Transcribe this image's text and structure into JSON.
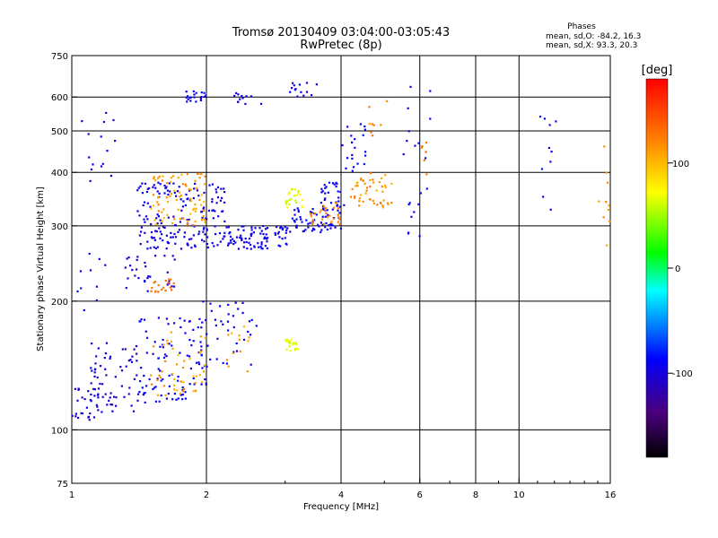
{
  "chart_data": {
    "type": "scatter",
    "title": "Tromsø 20130409 03:04:00-03:05:43",
    "subtitle": "RwPretec (8p)",
    "xlabel": "Frequency [MHz]",
    "ylabel": "Stationary phase Virtual Height [km]",
    "x_scale": "log",
    "y_scale": "log",
    "xlim": [
      1,
      16
    ],
    "ylim": [
      75,
      750
    ],
    "x_ticks": [
      1,
      2,
      4,
      6,
      8,
      10,
      16
    ],
    "y_ticks": [
      75,
      100,
      200,
      300,
      400,
      500,
      600,
      750
    ],
    "x_gridlines": [
      2,
      4,
      6,
      8,
      10
    ],
    "y_gridlines": [
      100,
      200,
      300,
      400,
      500,
      600
    ],
    "grid": true,
    "phases_box": {
      "title": "Phases",
      "line_o": "mean, sd,O: -84.2, 16.3",
      "line_x": "mean, sd,X:  93.3, 20.3"
    },
    "colorbar": {
      "label": "[deg]",
      "range": [
        -180,
        180
      ],
      "ticks": [
        -100,
        0,
        100
      ],
      "colormap": [
        "#000000",
        "#4b007f",
        "#0000ff",
        "#00ffff",
        "#00ff00",
        "#ffff00",
        "#ff8000",
        "#ff0000"
      ]
    },
    "series": [
      {
        "clusters": [
          {
            "f": [
              1.0,
              1.15
            ],
            "h": [
              105,
              125
            ],
            "n": 30,
            "ph": [
              -110,
              -95
            ]
          },
          {
            "f": [
              1.1,
              1.4
            ],
            "h": [
              110,
              160
            ],
            "n": 60,
            "ph": [
              -115,
              -90
            ]
          },
          {
            "f": [
              1.4,
              2.0
            ],
            "h": [
              115,
              185
            ],
            "n": 100,
            "ph": [
              -105,
              -80
            ]
          },
          {
            "f": [
              1.5,
              2.0
            ],
            "h": [
              120,
              170
            ],
            "n": 45,
            "ph": [
              95,
              125
            ]
          },
          {
            "f": [
              1.9,
              2.6
            ],
            "h": [
              140,
              200
            ],
            "n": 40,
            "ph": [
              -105,
              -85
            ]
          },
          {
            "f": [
              2.2,
              2.5
            ],
            "h": [
              135,
              175
            ],
            "n": 12,
            "ph": [
              100,
              125
            ]
          },
          {
            "f": [
              3.0,
              3.2
            ],
            "h": [
              153,
              163
            ],
            "n": 25,
            "ph": [
              55,
              75
            ]
          },
          {
            "f": [
              1.3,
              1.7
            ],
            "h": [
              210,
              260
            ],
            "n": 30,
            "ph": [
              -110,
              -90
            ]
          },
          {
            "f": [
              1.5,
              1.7
            ],
            "h": [
              210,
              225
            ],
            "n": 18,
            "ph": [
              120,
              135
            ]
          },
          {
            "f": [
              1.4,
              2.2
            ],
            "h": [
              265,
              380
            ],
            "n": 180,
            "ph": [
              -110,
              -85
            ]
          },
          {
            "f": [
              1.5,
              2.0
            ],
            "h": [
              300,
              400
            ],
            "n": 80,
            "ph": [
              95,
              125
            ]
          },
          {
            "f": [
              2.2,
              3.1
            ],
            "h": [
              265,
              300
            ],
            "n": 90,
            "ph": [
              -105,
              -85
            ]
          },
          {
            "f": [
              3.1,
              4.0
            ],
            "h": [
              290,
              330
            ],
            "n": 60,
            "ph": [
              -100,
              -80
            ]
          },
          {
            "f": [
              3.6,
              4.1
            ],
            "h": [
              325,
              380
            ],
            "n": 30,
            "ph": [
              -100,
              -80
            ]
          },
          {
            "f": [
              3.0,
              3.3
            ],
            "h": [
              330,
              370
            ],
            "n": 25,
            "ph": [
              55,
              80
            ]
          },
          {
            "f": [
              3.4,
              4.0
            ],
            "h": [
              300,
              340
            ],
            "n": 30,
            "ph": [
              110,
              130
            ]
          },
          {
            "f": [
              4.2,
              5.2
            ],
            "h": [
              330,
              400
            ],
            "n": 50,
            "ph": [
              100,
              130
            ]
          },
          {
            "f": [
              4.0,
              4.6
            ],
            "h": [
              400,
              520
            ],
            "n": 20,
            "ph": [
              -100,
              -80
            ]
          },
          {
            "f": [
              1.8,
              2.0
            ],
            "h": [
              585,
              620
            ],
            "n": 20,
            "ph": [
              -100,
              -80
            ]
          },
          {
            "f": [
              2.3,
              2.7
            ],
            "h": [
              575,
              615
            ],
            "n": 12,
            "ph": [
              -105,
              -90
            ]
          },
          {
            "f": [
              3.0,
              3.6
            ],
            "h": [
              600,
              650
            ],
            "n": 14,
            "ph": [
              -105,
              -85
            ]
          },
          {
            "f": [
              1.05,
              1.25
            ],
            "h": [
              380,
              560
            ],
            "n": 15,
            "ph": [
              -105,
              -85
            ]
          },
          {
            "f": [
              1.0,
              1.2
            ],
            "h": [
              180,
              260
            ],
            "n": 10,
            "ph": [
              -100,
              -80
            ]
          },
          {
            "f": [
              4.6,
              5.1
            ],
            "h": [
              480,
              590
            ],
            "n": 8,
            "ph": [
              100,
              130
            ]
          },
          {
            "f": [
              5.5,
              6.4
            ],
            "h": [
              250,
              660
            ],
            "n": 20,
            "ph": [
              -100,
              -80
            ]
          },
          {
            "f": [
              6.0,
              6.3
            ],
            "h": [
              390,
              470
            ],
            "n": 6,
            "ph": [
              120,
              140
            ]
          },
          {
            "f": [
              10.5,
              12.5
            ],
            "h": [
              320,
              560
            ],
            "n": 10,
            "ph": [
              -100,
              -80
            ]
          },
          {
            "f": [
              15.0,
              16.0
            ],
            "h": [
              250,
              480
            ],
            "n": 10,
            "ph": [
              100,
              130
            ]
          }
        ]
      }
    ]
  }
}
